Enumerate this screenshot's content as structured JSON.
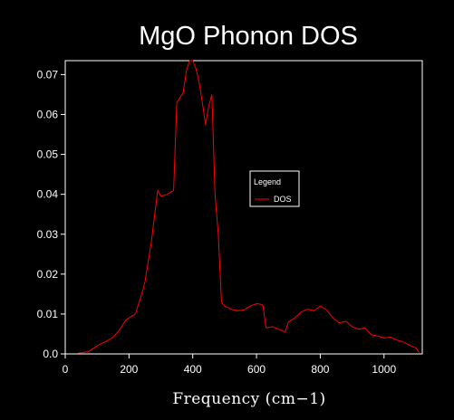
{
  "chart_data": {
    "type": "line",
    "title": "MgO Phonon DOS",
    "xlabel": "Frequency (cm−1)",
    "ylabel": "",
    "xlim": [
      0,
      1120
    ],
    "ylim": [
      0,
      0.0735
    ],
    "xticks": [
      0,
      200,
      400,
      600,
      800,
      1000
    ],
    "xtick_labels": [
      "0",
      "200",
      "400",
      "600",
      "800",
      "1000"
    ],
    "yticks": [
      0,
      0.01,
      0.02,
      0.03,
      0.04,
      0.05,
      0.06,
      0.07
    ],
    "ytick_labels": [
      "0.0",
      "0.01",
      "0.02",
      "0.03",
      "0.04",
      "0.05",
      "0.06",
      "0.07"
    ],
    "grid": false,
    "legend": {
      "title": "Legend",
      "position": "center-right"
    },
    "colors": {
      "background": "#000000",
      "axes": "#ffffff",
      "text": "#ffffff"
    },
    "series": [
      {
        "name": "DOS",
        "color": "#ff0000",
        "x": [
          40,
          70,
          90,
          110,
          130,
          150,
          170,
          190,
          210,
          220,
          240,
          250,
          270,
          290,
          300,
          320,
          340,
          350,
          370,
          380,
          390,
          400,
          410,
          420,
          430,
          440,
          450,
          460,
          470,
          480,
          490,
          500,
          520,
          540,
          560,
          580,
          600,
          610,
          620,
          630,
          650,
          670,
          690,
          700,
          720,
          740,
          760,
          780,
          800,
          820,
          840,
          860,
          880,
          900,
          920,
          940,
          960,
          980,
          1000,
          1020,
          1040,
          1060,
          1080,
          1100,
          1110
        ],
        "y": [
          0.0002,
          0.0005,
          0.0015,
          0.0025,
          0.0032,
          0.0042,
          0.006,
          0.0085,
          0.0095,
          0.01,
          0.015,
          0.018,
          0.028,
          0.041,
          0.0395,
          0.04,
          0.041,
          0.063,
          0.0655,
          0.071,
          0.0735,
          0.0735,
          0.0715,
          0.068,
          0.063,
          0.0575,
          0.062,
          0.065,
          0.04,
          0.03,
          0.013,
          0.012,
          0.0112,
          0.0108,
          0.011,
          0.012,
          0.0126,
          0.0125,
          0.0122,
          0.0065,
          0.0068,
          0.0062,
          0.0055,
          0.008,
          0.009,
          0.0105,
          0.0112,
          0.0108,
          0.012,
          0.011,
          0.009,
          0.0078,
          0.0082,
          0.0068,
          0.0062,
          0.0065,
          0.0048,
          0.0045,
          0.004,
          0.0042,
          0.0035,
          0.003,
          0.0022,
          0.0015,
          0.0003
        ]
      }
    ]
  }
}
